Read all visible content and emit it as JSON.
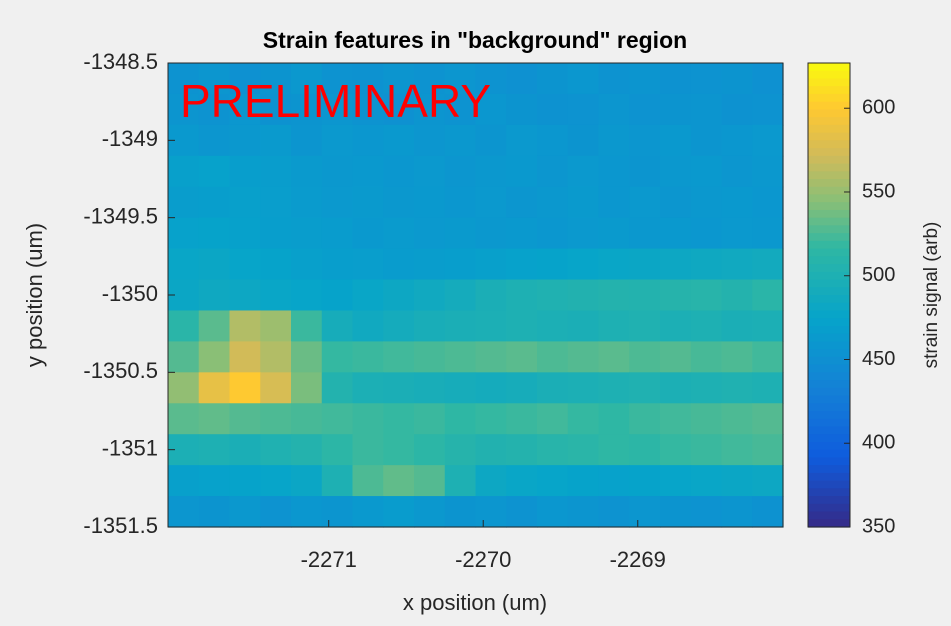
{
  "chart_data": {
    "type": "heatmap",
    "title": "Strain features in \"background\" region",
    "xlabel": "x position (um)",
    "ylabel": "y position (um)",
    "colorbar_label": "strain signal (arb)",
    "annotation": "PRELIMINARY",
    "annotation_color": "#ff0000",
    "colormap": "parula",
    "xlim": [
      -2272.04,
      -2268.06
    ],
    "xticks": [
      -2271,
      -2270,
      -2269
    ],
    "ylim": [
      -1351.5,
      -1348.5
    ],
    "yticks": [
      -1351.5,
      -1351,
      -1350.5,
      -1350,
      -1349.5,
      -1349,
      -1348.5
    ],
    "clim": [
      350,
      627
    ],
    "cticks": [
      350,
      400,
      450,
      500,
      550,
      600
    ],
    "z": [
      [
        455,
        458,
        452,
        456,
        460,
        455,
        453,
        457,
        454,
        458,
        455,
        452,
        456,
        459,
        454,
        457,
        453,
        455,
        456,
        452
      ],
      [
        457,
        455,
        459,
        453,
        456,
        458,
        455,
        452,
        457,
        455,
        459,
        456,
        453,
        455,
        458,
        454,
        456,
        457,
        453,
        455
      ],
      [
        462,
        458,
        460,
        463,
        457,
        461,
        459,
        462,
        458,
        460,
        457,
        461,
        459,
        456,
        460,
        458,
        462,
        457,
        459,
        461
      ],
      [
        470,
        472,
        468,
        466,
        463,
        460,
        462,
        459,
        461,
        458,
        460,
        462,
        458,
        461,
        459,
        457,
        460,
        462,
        458,
        460
      ],
      [
        466,
        468,
        470,
        467,
        464,
        461,
        463,
        460,
        462,
        459,
        461,
        458,
        460,
        463,
        459,
        461,
        458,
        460,
        462,
        459
      ],
      [
        472,
        474,
        471,
        468,
        466,
        465,
        462,
        464,
        461,
        463,
        460,
        462,
        459,
        461,
        463,
        460,
        462,
        459,
        461,
        460
      ],
      [
        478,
        480,
        476,
        474,
        470,
        468,
        467,
        465,
        466,
        468,
        470,
        472,
        474,
        476,
        478,
        480,
        482,
        484,
        486,
        488
      ],
      [
        480,
        484,
        482,
        478,
        476,
        474,
        478,
        482,
        486,
        490,
        496,
        500,
        502,
        504,
        506,
        505,
        508,
        510,
        506,
        512
      ],
      [
        512,
        530,
        560,
        552,
        520,
        492,
        486,
        490,
        494,
        496,
        498,
        500,
        498,
        496,
        500,
        502,
        498,
        500,
        496,
        498
      ],
      [
        528,
        545,
        572,
        560,
        535,
        518,
        520,
        522,
        524,
        526,
        528,
        530,
        526,
        528,
        530,
        526,
        528,
        524,
        526,
        522
      ],
      [
        548,
        585,
        600,
        575,
        540,
        505,
        498,
        496,
        494,
        492,
        490,
        492,
        496,
        498,
        500,
        502,
        498,
        500,
        502,
        500
      ],
      [
        530,
        532,
        528,
        526,
        524,
        522,
        520,
        518,
        520,
        516,
        518,
        520,
        522,
        518,
        516,
        520,
        522,
        524,
        526,
        528
      ],
      [
        498,
        500,
        496,
        502,
        506,
        514,
        520,
        518,
        514,
        508,
        504,
        506,
        510,
        512,
        516,
        514,
        518,
        520,
        522,
        524
      ],
      [
        470,
        472,
        474,
        476,
        480,
        500,
        526,
        532,
        528,
        500,
        482,
        478,
        476,
        474,
        472,
        474,
        476,
        478,
        480,
        482
      ],
      [
        458,
        456,
        460,
        455,
        459,
        457,
        462,
        465,
        460,
        456,
        458,
        455,
        459,
        457,
        454,
        458,
        456,
        455,
        457,
        453
      ]
    ]
  }
}
